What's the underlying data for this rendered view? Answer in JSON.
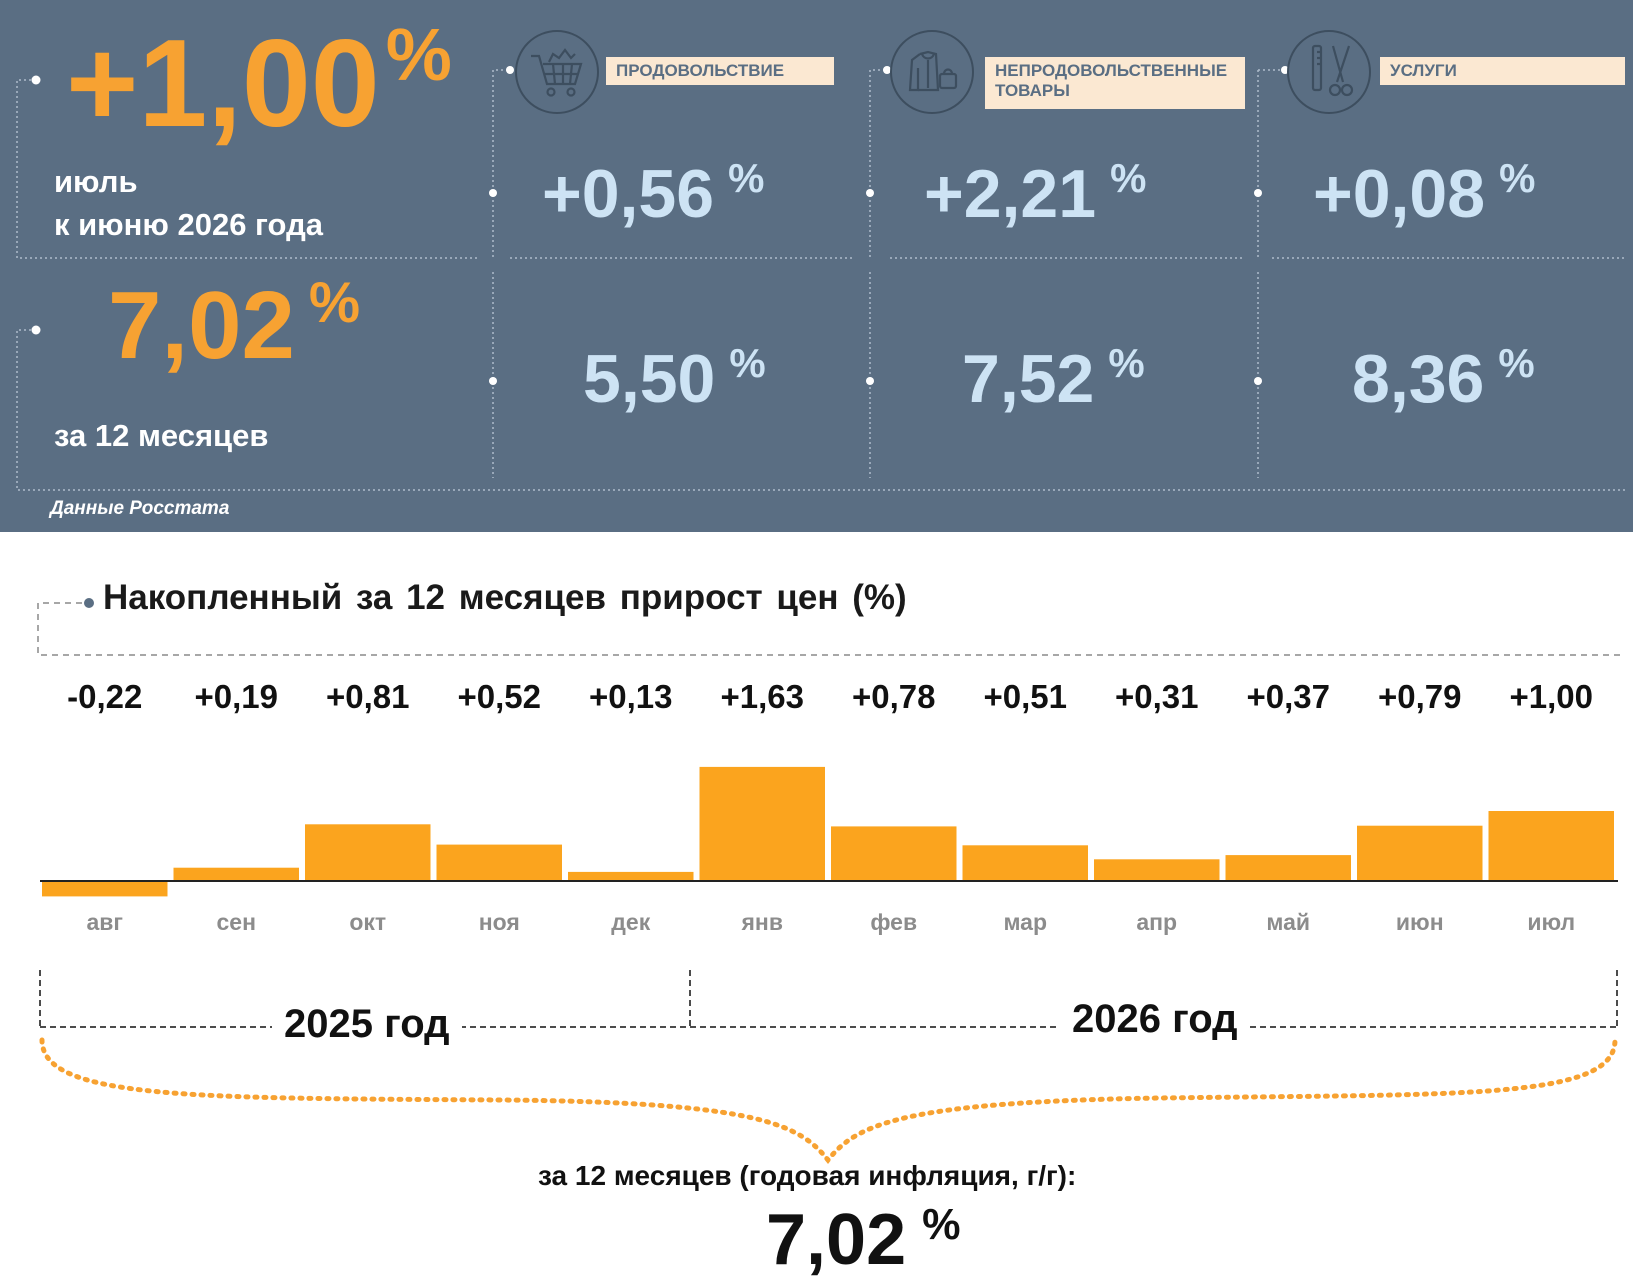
{
  "colors": {
    "panel_bg": "#5a6e83",
    "accent_orange": "#f7a232",
    "value_blue": "#cde3f4",
    "label_bg": "#fbe8d2",
    "bar_fill": "#fba41e"
  },
  "monthly": {
    "value": "+1,00",
    "unit": "%",
    "line1": "июль",
    "line2": "к июню 2026 года"
  },
  "annual_top": {
    "value": "7,02",
    "unit": "%",
    "caption": "за 12 месяцев"
  },
  "categories": [
    {
      "label": "ПРОДОВОЛЬСТВИЕ",
      "icon": "shopping-cart-icon",
      "monthly": "+0,56",
      "annual": "5,50",
      "unit": "%"
    },
    {
      "label": "НЕПРОДОВОЛЬСТВЕННЫЕ ТОВАРЫ",
      "icon": "clothing-icon",
      "monthly": "+2,21",
      "annual": "7,52",
      "unit": "%"
    },
    {
      "label": "УСЛУГИ",
      "icon": "scissors-comb-icon",
      "monthly": "+0,08",
      "annual": "8,36",
      "unit": "%"
    }
  ],
  "source": "Данные Росстата",
  "chart_data": {
    "type": "bar",
    "title": "Накопленный за 12 месяцев прирост цен (%)",
    "categories": [
      "авг",
      "сен",
      "окт",
      "ноя",
      "дек",
      "янв",
      "фев",
      "мар",
      "апр",
      "май",
      "июн",
      "июл"
    ],
    "values": [
      -0.22,
      0.19,
      0.81,
      0.52,
      0.13,
      1.63,
      0.78,
      0.51,
      0.31,
      0.37,
      0.79,
      1.0
    ],
    "value_labels": [
      "-0,22",
      "+0,19",
      "+0,81",
      "+0,52",
      "+0,13",
      "+1,63",
      "+0,78",
      "+0,51",
      "+0,31",
      "+0,37",
      "+0,79",
      "+1,00"
    ],
    "ylim": [
      -0.3,
      1.7
    ],
    "grid": false,
    "legend": "none"
  },
  "year_groups": [
    "2025 год",
    "2026 год"
  ],
  "annual_bottom": {
    "caption": "за 12 месяцев (годовая инфляция, г/г):",
    "value": "7,02",
    "unit": "%"
  }
}
